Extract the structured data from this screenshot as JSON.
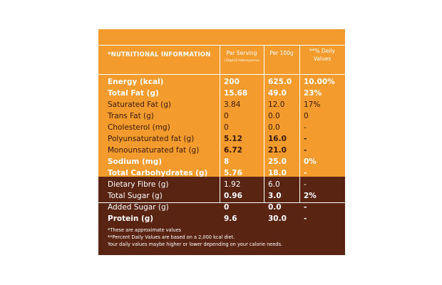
{
  "header": {
    "title": "*NUTRITIONAL INFORMATION",
    "col_serving": "Per Serving",
    "col_serving_sub": "(32gm/2 tablespoons)",
    "col_100g": "Per 100g",
    "col_dv_line1": "**% Daily",
    "col_dv_line2": "Values"
  },
  "rows": [
    {
      "label": "Energy (kcal)",
      "serving": "200",
      "per100": "625.0",
      "dv": "10.00%",
      "bold": true
    },
    {
      "label": "Total Fat (g)",
      "serving": "15.68",
      "per100": "49.0",
      "dv": "23%",
      "bold": true
    },
    {
      "label": "Saturated Fat (g)",
      "serving": "3.84",
      "per100": "12.0",
      "dv": "17%",
      "bold": false
    },
    {
      "label": "Trans Fat (g)",
      "serving": "0",
      "per100": "0.0",
      "dv": "0",
      "bold": false
    },
    {
      "label": "Cholesterol (mg)",
      "serving": "0",
      "per100": "0.0",
      "dv": "-",
      "bold": false
    },
    {
      "label": "Polyunsaturated fat (g)",
      "serving": "5.12",
      "per100": "16.0",
      "dv": "-",
      "bold": false
    },
    {
      "label": "Monounsaturated fat (g)",
      "serving": "6.72",
      "per100": "21.0",
      "dv": "-",
      "bold": false
    },
    {
      "label": "Sodium (mg)",
      "serving": "8",
      "per100": "25.0",
      "dv": "0%",
      "bold": true
    },
    {
      "label": "Total Carbohydrates (g)",
      "serving": "5.76",
      "per100": "18.0",
      "dv": "-",
      "bold": true
    },
    {
      "label": "Dietary Fibre (g)",
      "serving": "1.92",
      "per100": "6.0",
      "dv": "-",
      "bold": false
    },
    {
      "label": "Total Sugar (g)",
      "serving": "0.96",
      "per100": "3.0",
      "dv": "2%",
      "bold": false
    },
    {
      "label": "Added Sugar (g)",
      "serving": "0",
      "per100": "0.0",
      "dv": "-",
      "bold": false
    },
    {
      "label": "Protein (g)",
      "serving": "9.6",
      "per100": "30.0",
      "dv": "-",
      "bold": true
    }
  ],
  "footnotes": [
    "*These are approximate values",
    "**Percent Daily Values are based on a 2,000 kcal diet.",
    "Your daily values maybe higher or lower depending on your calorie needs."
  ],
  "colors": {
    "orange": "#f39b2c",
    "brown": "#5a2413",
    "dark_text": "#3a1a0c",
    "white": "#ffffff"
  }
}
